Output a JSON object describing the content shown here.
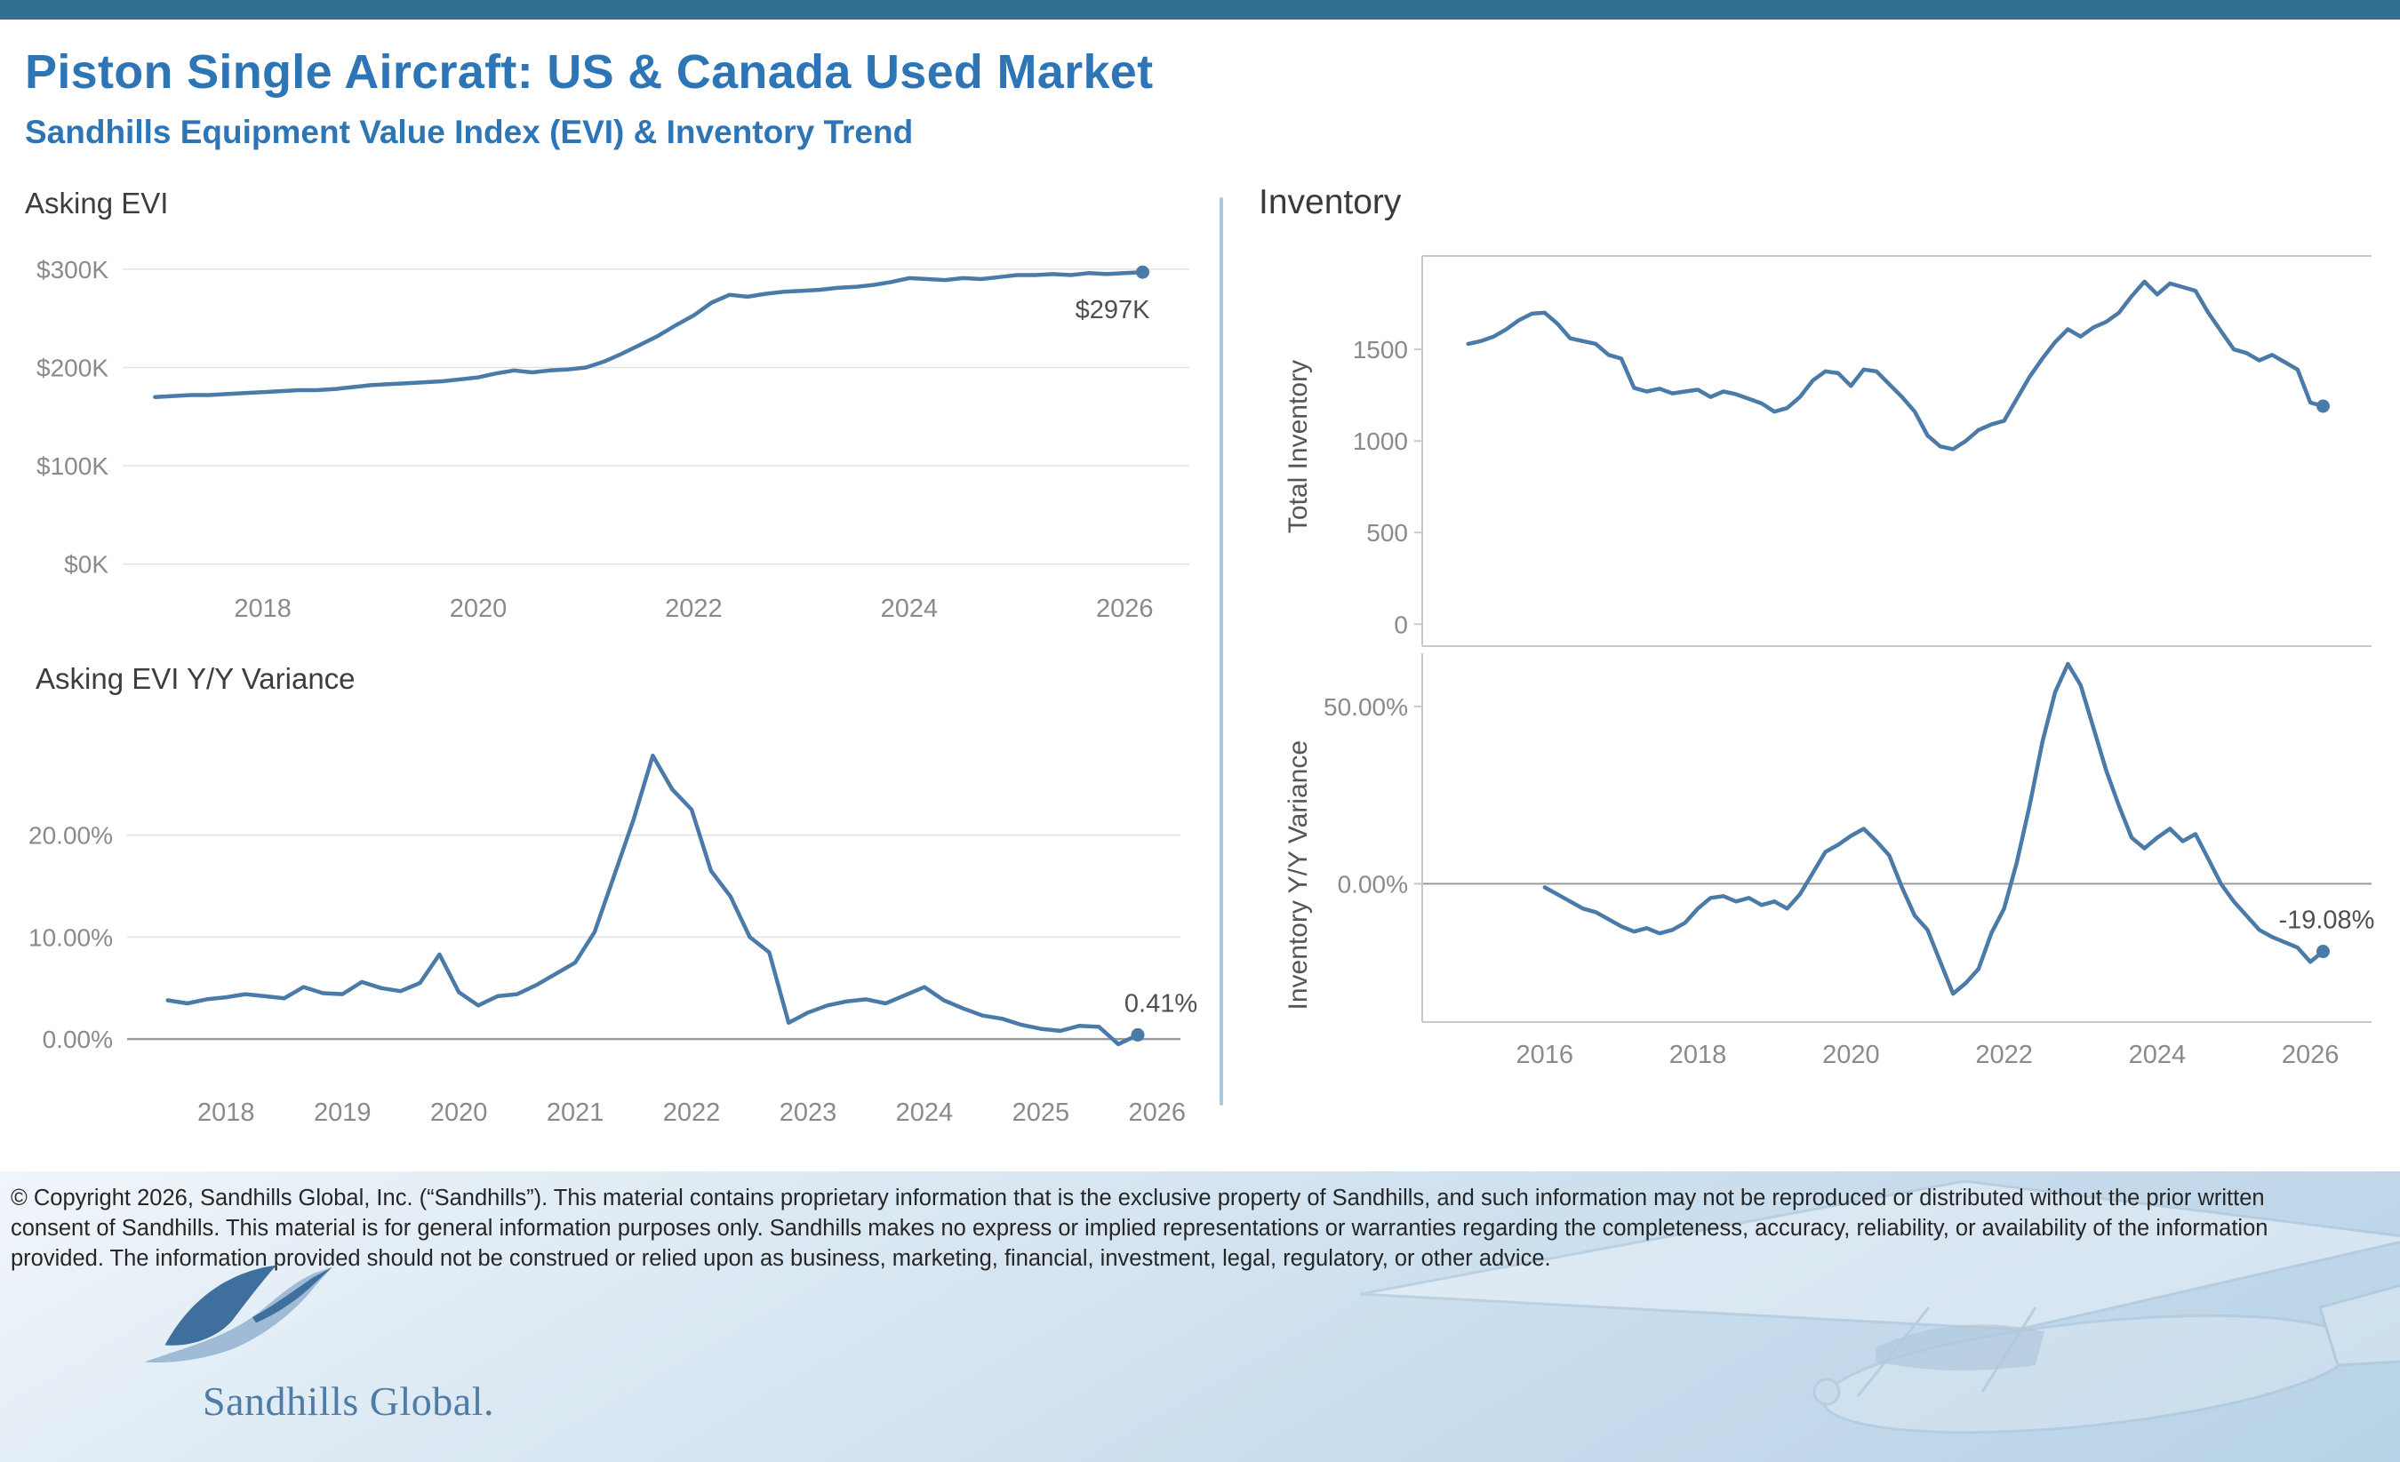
{
  "page": {
    "title": "Piston Single Aircraft:  US & Canada Used Market",
    "subtitle": "Sandhills Equipment Value Index (EVI) & Inventory Trend",
    "inventory_section_title": "Inventory"
  },
  "colors": {
    "topbar": "#337090",
    "heading": "#2E75B6",
    "line": "#4a7aa8",
    "grid": "#e2e2e2",
    "zero": "#9b9b9b",
    "frame": "#c9c9c9",
    "axis_text": "#8a8a8a",
    "divider": "#A6C9DE",
    "value_label": "#4f4f4f"
  },
  "footer": {
    "copyright": "© Copyright 2026, Sandhills Global, Inc. (“Sandhills”). This material contains proprietary information that is the exclusive property of Sandhills, and such information may not be reproduced or distributed without the prior written consent of Sandhills. This material is for general information purposes only. Sandhills makes no express or implied representations or warranties regarding the completeness, accuracy, reliability, or availability of the information provided. The information provided should not be construed or relied upon as business, marketing, financial, investment, legal, regulatory, or other advice.",
    "logo_text": "Sandhills Global."
  },
  "chart_data": [
    {
      "id": "asking_evi",
      "type": "line",
      "title": "Asking EVI",
      "x_start": 2017.0,
      "x_step": 0.16667,
      "values": [
        170,
        171,
        172,
        172,
        173,
        174,
        175,
        176,
        177,
        177,
        178,
        180,
        182,
        183,
        184,
        185,
        186,
        188,
        190,
        194,
        197,
        195,
        197,
        198,
        200,
        206,
        214,
        223,
        232,
        243,
        253,
        266,
        274,
        272,
        275,
        277,
        278,
        279,
        281,
        282,
        284,
        287,
        291,
        290,
        289,
        291,
        290,
        292,
        294,
        294,
        295,
        294,
        296,
        295,
        296,
        297
      ],
      "xlim": [
        2016.7,
        2026.6
      ],
      "ylim": [
        -12,
        318
      ],
      "xtick_values": [
        2018,
        2020,
        2022,
        2024,
        2026
      ],
      "xtick_labels": [
        "2018",
        "2020",
        "2022",
        "2024",
        "2026"
      ],
      "ytick_values": [
        0,
        100,
        200,
        300
      ],
      "ytick_labels": [
        "$0K",
        "$100K",
        "$200K",
        "$300K"
      ],
      "grid": true,
      "zero_line": false,
      "end_label": "$297K"
    },
    {
      "id": "evi_variance",
      "type": "line",
      "title": "Asking EVI Y/Y Variance",
      "x_start": 2017.5,
      "x_step": 0.16667,
      "values": [
        3.8,
        3.5,
        3.9,
        4.1,
        4.4,
        4.2,
        4.0,
        5.1,
        4.5,
        4.4,
        5.6,
        5.0,
        4.7,
        5.5,
        8.3,
        4.6,
        3.3,
        4.2,
        4.4,
        5.3,
        6.4,
        7.5,
        10.5,
        16.0,
        21.5,
        27.8,
        24.5,
        22.5,
        16.5,
        14.0,
        10.0,
        8.5,
        1.6,
        2.6,
        3.3,
        3.7,
        3.9,
        3.5,
        4.3,
        5.1,
        3.8,
        3.0,
        2.3,
        2.0,
        1.4,
        1.0,
        0.8,
        1.3,
        1.2,
        -0.5,
        0.41
      ],
      "xlim": [
        2017.15,
        2026.2
      ],
      "ylim": [
        -4,
        30
      ],
      "xtick_values": [
        2018,
        2019,
        2020,
        2021,
        2022,
        2023,
        2024,
        2025,
        2026
      ],
      "xtick_labels": [
        "2018",
        "2019",
        "2020",
        "2021",
        "2022",
        "2023",
        "2024",
        "2025",
        "2026"
      ],
      "ytick_values": [
        0,
        10,
        20
      ],
      "ytick_labels": [
        "0.00%",
        "10.00%",
        "20.00%"
      ],
      "grid": true,
      "zero_line": true,
      "end_label": "0.41%"
    },
    {
      "id": "inventory",
      "type": "line",
      "title": "Inventory",
      "ylabel": "Total Inventory",
      "x_start": 2015.0,
      "x_step": 0.16667,
      "values": [
        1530,
        1545,
        1570,
        1610,
        1660,
        1695,
        1700,
        1640,
        1560,
        1545,
        1530,
        1470,
        1450,
        1290,
        1270,
        1285,
        1260,
        1270,
        1280,
        1240,
        1270,
        1255,
        1230,
        1205,
        1160,
        1180,
        1240,
        1330,
        1380,
        1370,
        1300,
        1390,
        1380,
        1310,
        1240,
        1160,
        1030,
        970,
        955,
        1000,
        1060,
        1090,
        1110,
        1230,
        1350,
        1450,
        1540,
        1610,
        1570,
        1620,
        1650,
        1700,
        1790,
        1870,
        1800,
        1860,
        1840,
        1820,
        1700,
        1600,
        1500,
        1480,
        1440,
        1470,
        1430,
        1390,
        1210,
        1190
      ],
      "xlim": [
        2014.4,
        2026.8
      ],
      "ylim": [
        -120,
        2010
      ],
      "xtick_values": [],
      "xtick_labels": [],
      "ytick_values": [
        0,
        500,
        1000,
        1500
      ],
      "ytick_labels": [
        "0",
        "500",
        "1000",
        "1500"
      ],
      "grid": false,
      "zero_line": false,
      "end_label": ""
    },
    {
      "id": "inventory_variance",
      "type": "line",
      "title": "Inventory Y/Y Variance",
      "ylabel": "Inventory  Y/Y Variance",
      "x_start": 2016.0,
      "x_step": 0.16667,
      "values": [
        -1,
        -3,
        -5,
        -7,
        -8,
        -10,
        -12,
        -13.5,
        -12.5,
        -14,
        -13,
        -11,
        -7,
        -4,
        -3.5,
        -5,
        -4,
        -6,
        -5,
        -7,
        -3,
        3,
        9,
        11,
        13.5,
        15.5,
        12,
        8,
        -1,
        -9,
        -13,
        -22,
        -31,
        -28,
        -24,
        -14,
        -7,
        6,
        22,
        40,
        54,
        62,
        56,
        44,
        32,
        22,
        13,
        10,
        13,
        15.5,
        12,
        14,
        7,
        0,
        -5,
        -9,
        -13,
        -15,
        -16.5,
        -18,
        -22,
        -19.08
      ],
      "xlim": [
        2014.4,
        2026.8
      ],
      "ylim": [
        -39,
        65
      ],
      "xtick_values": [
        2016,
        2018,
        2020,
        2022,
        2024,
        2026
      ],
      "xtick_labels": [
        "2016",
        "2018",
        "2020",
        "2022",
        "2024",
        "2026"
      ],
      "ytick_values": [
        0,
        50
      ],
      "ytick_labels": [
        "0.00%",
        "50.00%"
      ],
      "grid": false,
      "zero_line": true,
      "end_label": "-19.08%"
    }
  ]
}
